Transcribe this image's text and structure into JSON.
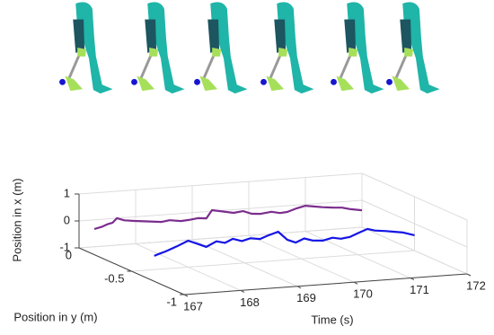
{
  "chart_data": {
    "type": "line3d",
    "xlabel": "Time (s)",
    "ylabel": "Position in y (m)",
    "zlabel": "Position in x (m)",
    "xlim": [
      167,
      172
    ],
    "ylim": [
      -1,
      0
    ],
    "zlim": [
      -1,
      1
    ],
    "xticks": [
      167,
      168,
      169,
      170,
      171,
      172
    ],
    "yticks": [
      -1,
      -0.5,
      0
    ],
    "zticks": [
      -1,
      0,
      1
    ],
    "grid": true,
    "series": [
      {
        "color": "#7b2d8e",
        "x": [
          167.27,
          167.4,
          167.5,
          167.59,
          167.67,
          167.8,
          167.98,
          168.2,
          168.46,
          168.6,
          168.8,
          168.94,
          169.1,
          169.25,
          169.35,
          169.5,
          169.73,
          169.9,
          170.05,
          170.21,
          170.4,
          170.55,
          170.68,
          170.85,
          171.0,
          171.15,
          171.3,
          171.48,
          171.65,
          171.8,
          172.0
        ],
        "y": [
          0,
          0,
          0,
          0,
          0,
          0,
          0,
          0,
          0,
          0,
          0,
          0,
          0,
          0,
          0,
          0,
          0,
          0,
          0,
          0,
          0,
          0,
          0,
          0,
          0,
          0,
          0,
          0,
          0,
          0,
          0
        ],
        "z": [
          -0.34,
          -0.28,
          -0.2,
          -0.16,
          0.0,
          -0.1,
          -0.15,
          -0.2,
          -0.26,
          -0.22,
          -0.28,
          -0.26,
          -0.22,
          -0.25,
          0.04,
          -0.02,
          -0.12,
          -0.08,
          -0.2,
          -0.23,
          -0.18,
          -0.25,
          -0.23,
          -0.12,
          -0.05,
          -0.1,
          -0.15,
          -0.19,
          -0.22,
          -0.3,
          -0.37
        ]
      },
      {
        "color": "#1414e6",
        "x": [
          167.4,
          167.5,
          167.6,
          167.8,
          168.0,
          168.15,
          168.32,
          168.5,
          168.65,
          168.79,
          168.95,
          169.1,
          169.27,
          169.4,
          169.59,
          169.75,
          169.9,
          170.05,
          170.2,
          170.38,
          170.55,
          170.7,
          170.86,
          171.0,
          171.17,
          171.3,
          171.5,
          171.65,
          171.8,
          172.0
        ],
        "y": [
          -0.5,
          -0.5,
          -0.5,
          -0.5,
          -0.5,
          -0.5,
          -0.5,
          -0.5,
          -0.5,
          -0.5,
          -0.5,
          -0.5,
          -0.5,
          -0.5,
          -0.5,
          -0.5,
          -0.5,
          -0.5,
          -0.5,
          -0.5,
          -0.5,
          -0.5,
          -0.5,
          -0.5,
          -0.5,
          -0.5,
          -0.5,
          -0.5,
          -0.5,
          -0.5
        ],
        "z": [
          -0.49,
          -0.42,
          -0.36,
          -0.2,
          -0.02,
          -0.15,
          -0.3,
          -0.12,
          -0.2,
          -0.07,
          -0.18,
          -0.1,
          -0.15,
          -0.05,
          0.07,
          -0.25,
          -0.38,
          -0.25,
          -0.35,
          -0.38,
          -0.3,
          -0.36,
          -0.32,
          -0.2,
          -0.07,
          -0.15,
          -0.2,
          -0.25,
          -0.3,
          -0.43
        ]
      }
    ]
  }
}
